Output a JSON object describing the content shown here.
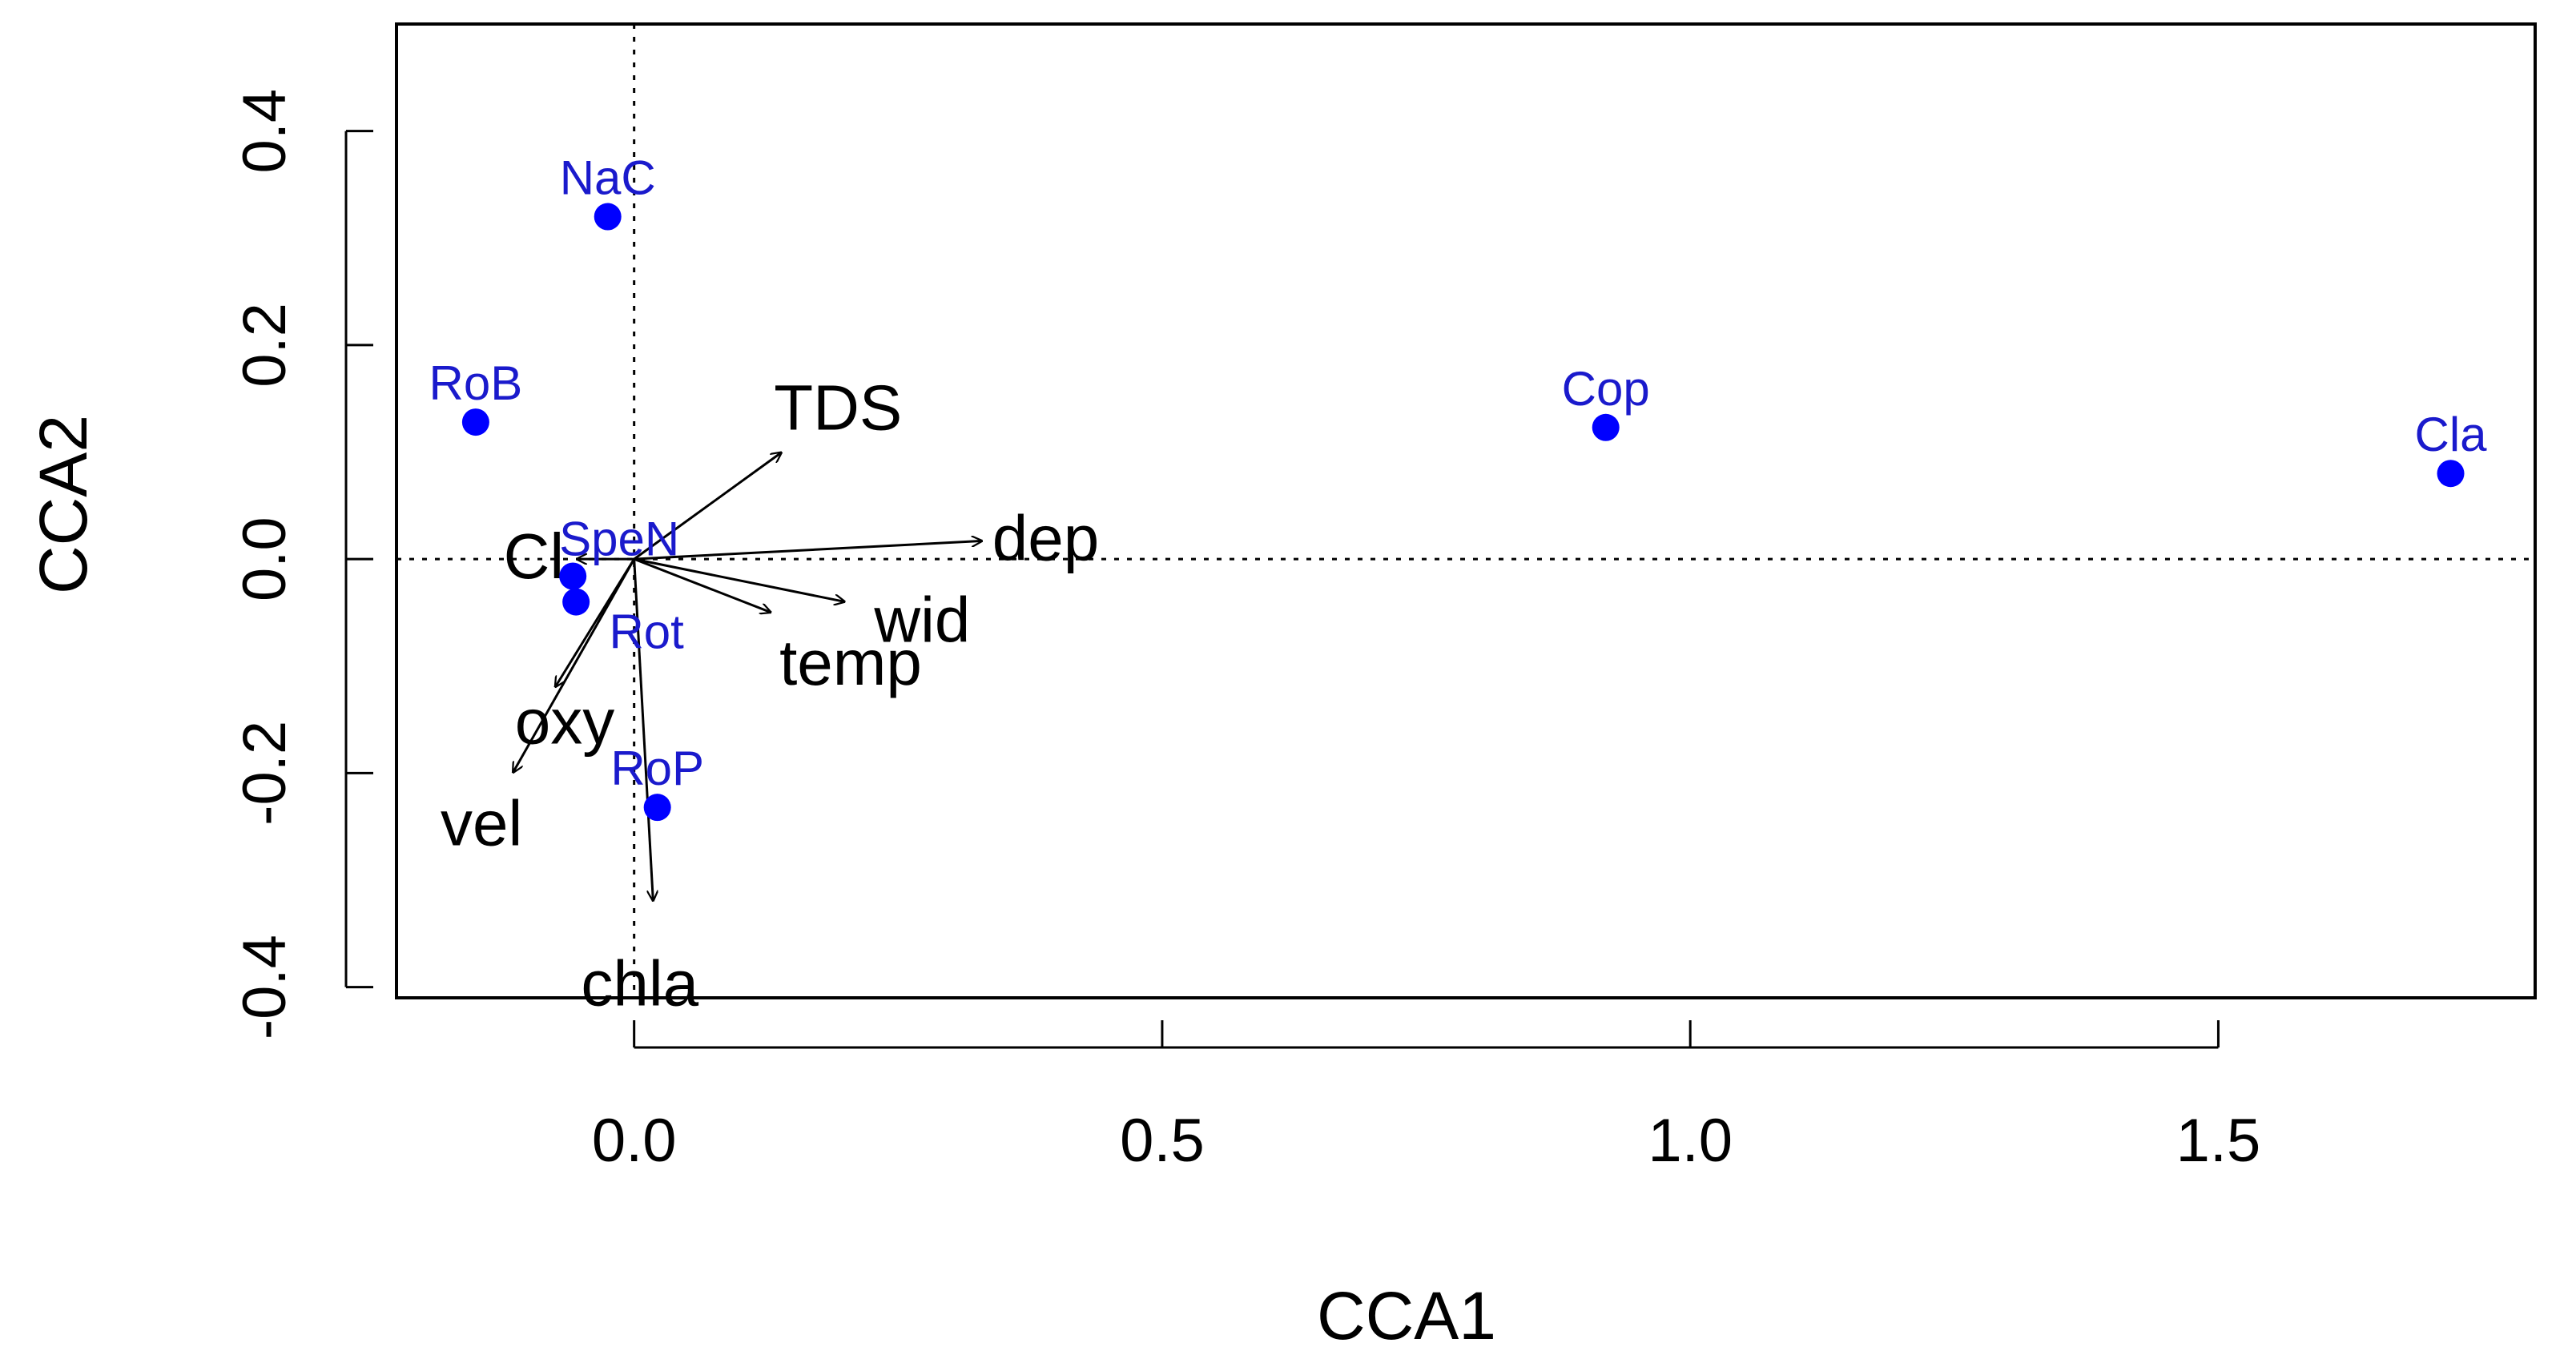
{
  "chart_data": {
    "type": "scatter",
    "title": "",
    "xlabel": "CCA1",
    "ylabel": "CCA2",
    "xlim": [
      -0.225,
      1.8
    ],
    "ylim": [
      -0.41,
      0.5
    ],
    "xticks": [
      0.0,
      0.5,
      1.0,
      1.5
    ],
    "xtick_labels": [
      "0.0",
      "0.5",
      "1.0",
      "1.5"
    ],
    "yticks": [
      -0.4,
      -0.2,
      0.0,
      0.2,
      0.4
    ],
    "ytick_labels": [
      "-0.4",
      "-0.2",
      "0.0",
      "0.2",
      "0.4"
    ],
    "grid": false,
    "reference_lines": {
      "x": 0,
      "y": 0,
      "style": "dotted"
    },
    "species_color": "#1a1acc",
    "point_color": "#0000ff",
    "species": [
      {
        "label": "NaC",
        "x": -0.025,
        "y": 0.32
      },
      {
        "label": "RoB",
        "x": -0.15,
        "y": 0.128
      },
      {
        "label": "Cop",
        "x": 0.92,
        "y": 0.123
      },
      {
        "label": "Cla",
        "x": 1.72,
        "y": 0.08
      },
      {
        "label": "SpeN",
        "x": -0.058,
        "y": -0.016
      },
      {
        "label": "Rot",
        "x": -0.055,
        "y": -0.04
      },
      {
        "label": "RoP",
        "x": 0.022,
        "y": -0.232
      }
    ],
    "env_vectors": [
      {
        "label": "TDS",
        "x": 0.14,
        "y": 0.1
      },
      {
        "label": "dep",
        "x": 0.33,
        "y": 0.017
      },
      {
        "label": "wid",
        "x": 0.2,
        "y": -0.04
      },
      {
        "label": "temp",
        "x": 0.13,
        "y": -0.05
      },
      {
        "label": "Cl",
        "x": -0.055,
        "y": 0.0
      },
      {
        "label": "oxy",
        "x": -0.075,
        "y": -0.12
      },
      {
        "label": "vel",
        "x": -0.115,
        "y": -0.2
      },
      {
        "label": "chla",
        "x": 0.018,
        "y": -0.32
      }
    ]
  }
}
